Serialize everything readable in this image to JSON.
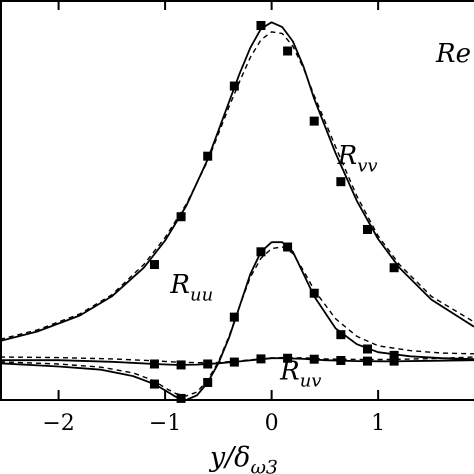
{
  "chart_data": {
    "type": "line",
    "title": "",
    "xlabel": "y/δ",
    "xlabel_sub": "ω3",
    "ylabel": "",
    "xlim": [
      -2.55,
      1.9
    ],
    "ylim": [
      -0.125,
      1.13
    ],
    "xticks": [
      {
        "value": -2,
        "label": "−2"
      },
      {
        "value": -1,
        "label": "−1"
      },
      {
        "value": 0,
        "label": "0"
      },
      {
        "value": 1,
        "label": "1"
      }
    ],
    "corner_label": "Re",
    "line_styles": {
      "model": "solid",
      "reference": "dashed",
      "markers": "filled-square"
    },
    "series": [
      {
        "name": "R",
        "name_sub": "vv",
        "label_at": [
          0.62,
          0.615
        ],
        "x_solid": [
          -2.55,
          -2.2,
          -1.8,
          -1.5,
          -1.2,
          -1.0,
          -0.8,
          -0.6,
          -0.5,
          -0.4,
          -0.3,
          -0.2,
          -0.1,
          0.0,
          0.1,
          0.2,
          0.3,
          0.4,
          0.6,
          0.8,
          1.0,
          1.2,
          1.5,
          1.9
        ],
        "y_solid": [
          0.06,
          0.09,
          0.14,
          0.2,
          0.29,
          0.375,
          0.485,
          0.63,
          0.72,
          0.81,
          0.9,
          0.98,
          1.04,
          1.06,
          1.045,
          1.0,
          0.92,
          0.82,
          0.65,
          0.5,
          0.38,
          0.29,
          0.19,
          0.105
        ],
        "x_dashed": [
          -2.55,
          -2.2,
          -1.8,
          -1.5,
          -1.2,
          -1.0,
          -0.8,
          -0.6,
          -0.5,
          -0.4,
          -0.3,
          -0.2,
          -0.1,
          0.0,
          0.1,
          0.2,
          0.3,
          0.4,
          0.6,
          0.8,
          1.0,
          1.2,
          1.5,
          1.9
        ],
        "y_dashed": [
          0.065,
          0.095,
          0.145,
          0.205,
          0.3,
          0.385,
          0.49,
          0.625,
          0.71,
          0.795,
          0.875,
          0.95,
          1.005,
          1.03,
          1.025,
          0.985,
          0.915,
          0.83,
          0.67,
          0.515,
          0.39,
          0.3,
          0.2,
          0.12
        ],
        "markers_x": [
          -1.1,
          -0.85,
          -0.6,
          -0.35,
          -0.1,
          0.15,
          0.4,
          0.65,
          0.9,
          1.15
        ],
        "markers_y": [
          0.3,
          0.45,
          0.64,
          0.86,
          1.05,
          0.97,
          0.75,
          0.56,
          0.41,
          0.29
        ]
      },
      {
        "name": "R",
        "name_sub": "uu",
        "label_at": [
          -0.95,
          0.21
        ],
        "x_solid": [
          -2.55,
          -2.0,
          -1.6,
          -1.3,
          -1.1,
          -1.0,
          -0.9,
          -0.8,
          -0.7,
          -0.6,
          -0.5,
          -0.4,
          -0.3,
          -0.2,
          -0.1,
          0.0,
          0.1,
          0.2,
          0.3,
          0.4,
          0.6,
          0.8,
          1.0,
          1.3,
          1.6,
          1.9
        ],
        "y_solid": [
          -0.01,
          -0.02,
          -0.03,
          -0.05,
          -0.075,
          -0.095,
          -0.115,
          -0.125,
          -0.11,
          -0.07,
          -0.01,
          0.07,
          0.17,
          0.27,
          0.34,
          0.37,
          0.37,
          0.34,
          0.27,
          0.2,
          0.1,
          0.05,
          0.025,
          0.012,
          0.006,
          0.003
        ],
        "x_dashed": [
          -2.55,
          -2.0,
          -1.6,
          -1.3,
          -1.1,
          -1.0,
          -0.9,
          -0.8,
          -0.7,
          -0.6,
          -0.5,
          -0.4,
          -0.3,
          -0.2,
          -0.1,
          0.0,
          0.1,
          0.2,
          0.3,
          0.4,
          0.6,
          0.8,
          1.0,
          1.3,
          1.6,
          1.9
        ],
        "y_dashed": [
          -0.005,
          -0.012,
          -0.022,
          -0.04,
          -0.065,
          -0.087,
          -0.105,
          -0.112,
          -0.1,
          -0.062,
          -0.005,
          0.075,
          0.17,
          0.26,
          0.32,
          0.35,
          0.355,
          0.335,
          0.28,
          0.22,
          0.13,
          0.075,
          0.045,
          0.03,
          0.022,
          0.02
        ],
        "markers_x": [
          -1.1,
          -0.85,
          -0.6,
          -0.35,
          -0.1,
          0.15,
          0.4,
          0.65,
          0.9,
          1.15
        ],
        "markers_y": [
          -0.075,
          -0.12,
          -0.07,
          0.135,
          0.34,
          0.355,
          0.21,
          0.08,
          0.035,
          0.015
        ]
      },
      {
        "name": "R",
        "name_sub": "uv",
        "label_at": [
          0.08,
          -0.06
        ],
        "x_solid": [
          -2.55,
          -2.0,
          -1.5,
          -1.1,
          -0.9,
          -0.7,
          -0.5,
          -0.3,
          -0.1,
          0.0,
          0.1,
          0.3,
          0.5,
          0.8,
          1.1,
          1.5,
          1.9
        ],
        "y_solid": [
          0.0,
          0.0,
          -0.005,
          -0.012,
          -0.015,
          -0.014,
          -0.01,
          -0.004,
          0.003,
          0.006,
          0.006,
          0.004,
          0.0,
          -0.003,
          -0.004,
          -0.002,
          0.0
        ],
        "x_dashed": [
          -2.55,
          -2.0,
          -1.5,
          -1.1,
          -0.9,
          -0.7,
          -0.5,
          -0.3,
          -0.1,
          0.0,
          0.1,
          0.3,
          0.5,
          0.8,
          1.1,
          1.5,
          1.9
        ],
        "y_dashed": [
          0.01,
          0.008,
          0.004,
          -0.002,
          -0.006,
          -0.008,
          -0.007,
          -0.002,
          0.004,
          0.007,
          0.008,
          0.007,
          0.004,
          0.002,
          0.002,
          0.005,
          0.01
        ],
        "markers_x": [
          -1.1,
          -0.85,
          -0.6,
          -0.35,
          -0.1,
          0.15,
          0.4,
          0.65,
          0.9,
          1.15
        ],
        "markers_y": [
          -0.012,
          -0.015,
          -0.012,
          -0.006,
          0.004,
          0.006,
          0.003,
          -0.001,
          -0.003,
          -0.003
        ]
      }
    ]
  }
}
